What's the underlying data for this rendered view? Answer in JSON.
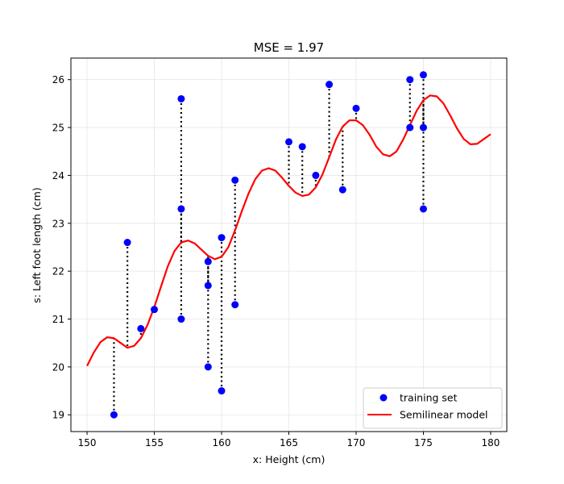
{
  "chart_data": {
    "type": "scatter",
    "title": "MSE = 1.97",
    "xlabel": "x: Height (cm)",
    "ylabel": "s: Left foot length (cm)",
    "xlim": [
      148.8,
      181.2
    ],
    "ylim": [
      18.65,
      26.45
    ],
    "xticks": [
      150,
      155,
      160,
      165,
      170,
      175,
      180
    ],
    "yticks": [
      19,
      20,
      21,
      22,
      23,
      24,
      25,
      26
    ],
    "grid": true,
    "legend_position": "bottom-right",
    "series": [
      {
        "name": "training set",
        "kind": "scatter",
        "color": "#0000ff",
        "points": [
          [
            152,
            19.0
          ],
          [
            153,
            22.6
          ],
          [
            154,
            20.8
          ],
          [
            155,
            21.2
          ],
          [
            157,
            25.6
          ],
          [
            157,
            23.3
          ],
          [
            157,
            21.0
          ],
          [
            159,
            22.2
          ],
          [
            159,
            21.7
          ],
          [
            159,
            20.0
          ],
          [
            160,
            22.7
          ],
          [
            160,
            19.5
          ],
          [
            161,
            23.9
          ],
          [
            161,
            21.3
          ],
          [
            165,
            24.7
          ],
          [
            166,
            24.6
          ],
          [
            167,
            24.0
          ],
          [
            168,
            25.9
          ],
          [
            169,
            23.7
          ],
          [
            170,
            25.4
          ],
          [
            174,
            26.0
          ],
          [
            174,
            25.0
          ],
          [
            175,
            26.1
          ],
          [
            175,
            25.0
          ],
          [
            175,
            23.3
          ]
        ]
      },
      {
        "name": "Semilinear model",
        "kind": "line",
        "color": "#ff0000",
        "points": [
          [
            150,
            20.02
          ],
          [
            150.5,
            20.3
          ],
          [
            151,
            20.52
          ],
          [
            151.5,
            20.62
          ],
          [
            152,
            20.6
          ],
          [
            152.5,
            20.5
          ],
          [
            153,
            20.4
          ],
          [
            153.5,
            20.44
          ],
          [
            154,
            20.6
          ],
          [
            154.5,
            20.88
          ],
          [
            155,
            21.25
          ],
          [
            155.5,
            21.68
          ],
          [
            156,
            22.1
          ],
          [
            156.5,
            22.42
          ],
          [
            157,
            22.6
          ],
          [
            157.5,
            22.64
          ],
          [
            158,
            22.58
          ],
          [
            158.5,
            22.45
          ],
          [
            159,
            22.32
          ],
          [
            159.5,
            22.25
          ],
          [
            160,
            22.3
          ],
          [
            160.5,
            22.5
          ],
          [
            161,
            22.85
          ],
          [
            161.5,
            23.25
          ],
          [
            162,
            23.62
          ],
          [
            162.5,
            23.92
          ],
          [
            163,
            24.1
          ],
          [
            163.5,
            24.15
          ],
          [
            164,
            24.1
          ],
          [
            164.5,
            23.95
          ],
          [
            165,
            23.78
          ],
          [
            165.5,
            23.64
          ],
          [
            166,
            23.57
          ],
          [
            166.5,
            23.6
          ],
          [
            167,
            23.75
          ],
          [
            167.5,
            24.02
          ],
          [
            168,
            24.38
          ],
          [
            168.5,
            24.75
          ],
          [
            169,
            25.02
          ],
          [
            169.5,
            25.15
          ],
          [
            170,
            25.15
          ],
          [
            170.5,
            25.05
          ],
          [
            171,
            24.85
          ],
          [
            171.5,
            24.6
          ],
          [
            172,
            24.44
          ],
          [
            172.5,
            24.4
          ],
          [
            173,
            24.5
          ],
          [
            173.5,
            24.75
          ],
          [
            174,
            25.05
          ],
          [
            174.5,
            25.35
          ],
          [
            175,
            25.57
          ],
          [
            175.5,
            25.67
          ],
          [
            176,
            25.65
          ],
          [
            176.5,
            25.5
          ],
          [
            177,
            25.25
          ],
          [
            177.5,
            24.98
          ],
          [
            178,
            24.76
          ],
          [
            178.5,
            24.65
          ],
          [
            179,
            24.66
          ],
          [
            179.5,
            24.76
          ],
          [
            180,
            24.86
          ]
        ]
      }
    ],
    "residual_style": "black dotted vertical lines from each point to the model curve"
  },
  "colors": {
    "points": "#0000ff",
    "model": "#ff0000",
    "residual": "#000000",
    "grid": "#e6e6e6"
  }
}
